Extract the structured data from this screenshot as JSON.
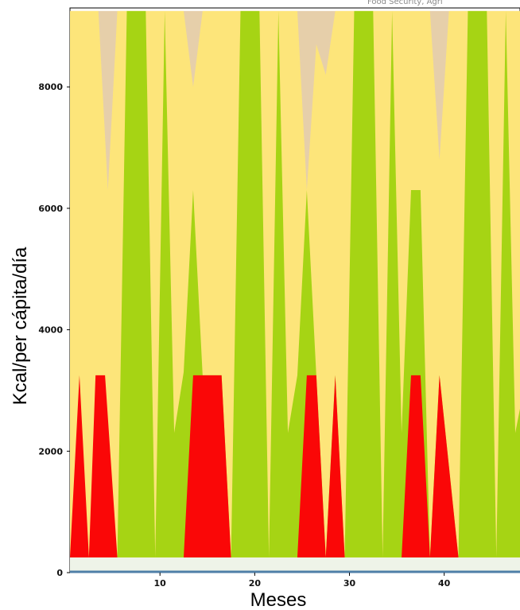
{
  "chart_data": {
    "type": "area",
    "title": "",
    "top_text_fragment": "Food Security, Agri",
    "xlabel": "Meses",
    "ylabel": "Kcal/per cápita/día",
    "x_ticks": [
      10,
      20,
      30,
      40
    ],
    "y_ticks": [
      0,
      2000,
      4000,
      6000,
      8000
    ],
    "xlim": [
      0.5,
      48
    ],
    "ylim": [
      0,
      9300
    ],
    "grid": false,
    "legend": "none",
    "band_bottom": 250,
    "band_top": 9250,
    "colors": {
      "top": "#e6cfaa",
      "yellow": "#fde57a",
      "green": "#a6d414",
      "red": "#fa0707",
      "floor": "#eef3e8",
      "baseline": "#4f7fa8"
    },
    "series": [
      {
        "key": "red",
        "x": [
          0.5,
          1.5,
          2.5,
          3.2,
          4.2,
          5.5,
          12.5,
          13.5,
          16.5,
          17.5,
          24.5,
          25.5,
          26.5,
          27.5,
          28.5,
          29.5,
          35.5,
          36.5,
          37.5,
          38.5,
          39.5,
          41.5,
          48
        ],
        "y": [
          250,
          3250,
          250,
          3250,
          3250,
          250,
          250,
          3250,
          3250,
          250,
          250,
          3250,
          3250,
          250,
          3250,
          250,
          250,
          3250,
          3250,
          250,
          3250,
          250,
          250
        ]
      },
      {
        "key": "green",
        "x": [
          0.5,
          2.5,
          3.5,
          4.5,
          5.5,
          6.5,
          8.5,
          9.5,
          10.5,
          11.5,
          12.5,
          13.5,
          14.5,
          16.5,
          17.5,
          18.5,
          20.5,
          21.5,
          22.5,
          23.5,
          24.5,
          25.5,
          26.5,
          27.5,
          28.5,
          29.5,
          30.5,
          32.5,
          33.5,
          34.5,
          35.5,
          36.5,
          37.5,
          38.5,
          39.5,
          41.5,
          42.5,
          44.5,
          45.5,
          46.5,
          47.5,
          48
        ],
        "y": [
          250,
          250,
          250,
          250,
          250,
          9250,
          9250,
          250,
          9250,
          2300,
          3300,
          6300,
          3250,
          3250,
          250,
          9250,
          9250,
          250,
          9250,
          2300,
          3250,
          6300,
          3250,
          250,
          3250,
          250,
          9250,
          9250,
          250,
          9250,
          2300,
          6300,
          6300,
          250,
          3250,
          250,
          9250,
          9250,
          250,
          9250,
          2300,
          2700
        ]
      },
      {
        "key": "yellow",
        "x": [
          0.5,
          3.5,
          4.5,
          5.5,
          12.5,
          13.5,
          14.5,
          24.5,
          25.5,
          26.5,
          27.5,
          28.5,
          38.5,
          39.5,
          40.5,
          48
        ],
        "y": [
          9250,
          9250,
          6300,
          9250,
          9250,
          8000,
          9250,
          9250,
          6300,
          8700,
          8200,
          9250,
          9250,
          6800,
          9250,
          9250
        ]
      }
    ]
  }
}
